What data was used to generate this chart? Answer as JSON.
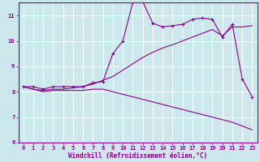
{
  "xlabel": "Windchill (Refroidissement éolien,°C)",
  "xlim": [
    -0.5,
    23.5
  ],
  "ylim": [
    6,
    11.5
  ],
  "yticks": [
    6,
    7,
    8,
    9,
    10,
    11
  ],
  "xticks": [
    0,
    1,
    2,
    3,
    4,
    5,
    6,
    7,
    8,
    9,
    10,
    11,
    12,
    13,
    14,
    15,
    16,
    17,
    18,
    19,
    20,
    21,
    22,
    23
  ],
  "bg_color": "#cce8ec",
  "line_color": "#880088",
  "grid_color": "#ffffff",
  "lines": [
    {
      "x": [
        0,
        1,
        2,
        3,
        4,
        5,
        6,
        7,
        8,
        9,
        10,
        11,
        12,
        13,
        14,
        15,
        16,
        17,
        18,
        19,
        20,
        21,
        22,
        23
      ],
      "y": [
        8.2,
        8.2,
        8.1,
        8.2,
        8.2,
        8.2,
        8.2,
        8.35,
        8.4,
        9.5,
        10.0,
        11.5,
        11.55,
        10.7,
        10.55,
        10.6,
        10.65,
        10.85,
        10.9,
        10.85,
        10.15,
        10.65,
        8.5,
        7.8
      ],
      "marker": "+"
    },
    {
      "x": [
        0,
        1,
        2,
        3,
        4,
        5,
        6,
        7,
        8,
        9,
        10,
        11,
        12,
        13,
        14,
        15,
        16,
        17,
        18,
        19,
        20,
        21,
        22,
        23
      ],
      "y": [
        8.2,
        8.1,
        8.05,
        8.1,
        8.1,
        8.15,
        8.2,
        8.3,
        8.45,
        8.6,
        8.85,
        9.1,
        9.35,
        9.55,
        9.72,
        9.85,
        10.0,
        10.15,
        10.3,
        10.45,
        10.2,
        10.55,
        10.55,
        10.6
      ],
      "marker": null
    },
    {
      "x": [
        0,
        1,
        2,
        3,
        4,
        5,
        6,
        7,
        8,
        9,
        10,
        11,
        12,
        13,
        14,
        15,
        16,
        17,
        18,
        19,
        20,
        21,
        22,
        23
      ],
      "y": [
        8.2,
        8.1,
        8.0,
        8.05,
        8.05,
        8.05,
        8.05,
        8.1,
        8.1,
        8.0,
        7.9,
        7.8,
        7.7,
        7.6,
        7.5,
        7.4,
        7.3,
        7.2,
        7.1,
        7.0,
        6.9,
        6.8,
        6.65,
        6.5
      ],
      "marker": null
    }
  ]
}
